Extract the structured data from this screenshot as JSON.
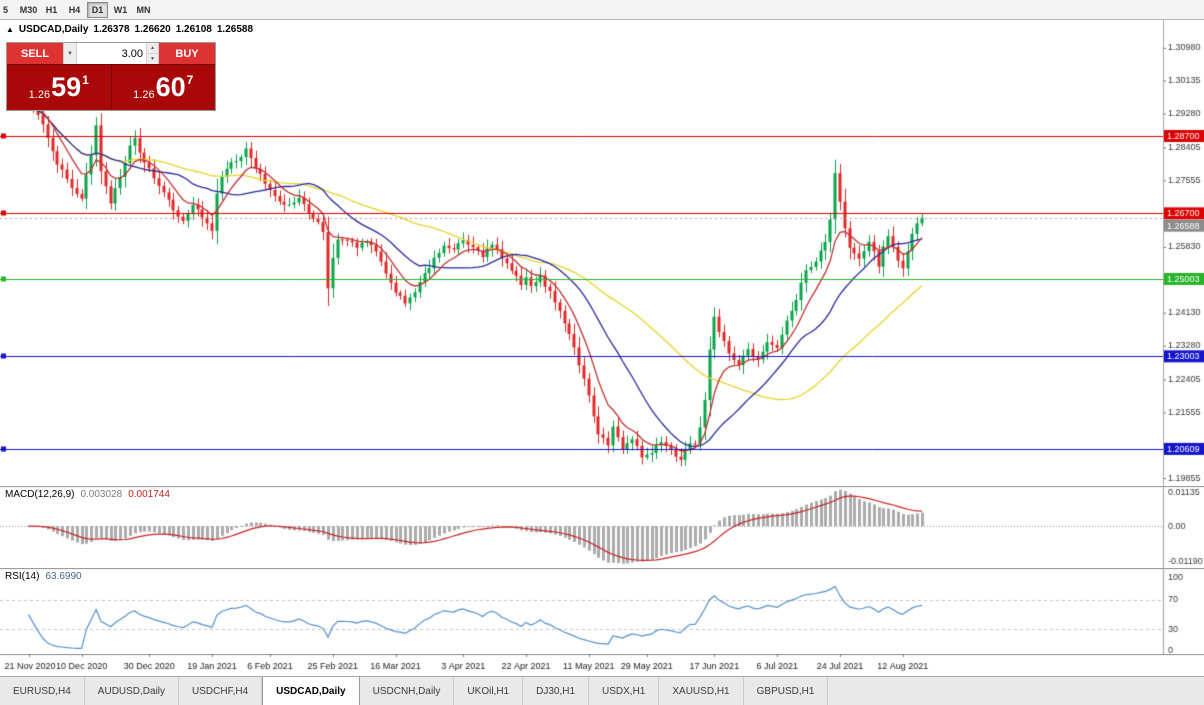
{
  "toolbar": {
    "periods": [
      "5",
      "M30",
      "H1",
      "H4",
      "D1",
      "W1",
      "MN"
    ],
    "active_period": "D1"
  },
  "header": {
    "collapse_icon": "▲",
    "symbol": "USDCAD,Daily",
    "open": "1.26378",
    "high": "1.26620",
    "low": "1.26108",
    "close": "1.26588"
  },
  "trade": {
    "sell_label": "SELL",
    "buy_label": "BUY",
    "volume": "3.00",
    "bid_small": "1.26",
    "bid_big": "59",
    "bid_sup": "1",
    "ask_small": "1.26",
    "ask_big": "60",
    "ask_sup": "7"
  },
  "icons": {
    "dropdown": "▼",
    "spin_up": "▲",
    "spin_down": "▼"
  },
  "indicators": {
    "macd": {
      "name": "MACD(12,26,9)",
      "value": "0.003028",
      "signal_value": "0.001744"
    },
    "rsi": {
      "name": "RSI(14)",
      "value": "63.6990"
    }
  },
  "tabs": {
    "items": [
      "EURUSD,H4",
      "AUDUSD,Daily",
      "USDCHF,H4",
      "USDCAD,Daily",
      "USDCNH,Daily",
      "UKOil,H1",
      "DJ30,H1",
      "USDX,H1",
      "XAUUSD,H1",
      "GBPUSD,H1"
    ],
    "active_index": 3
  },
  "chart_data": {
    "type": "candlestick",
    "symbol": "USDCAD",
    "timeframe": "Daily",
    "ohlc_display": {
      "open": 1.26378,
      "high": 1.2662,
      "low": 1.26108,
      "close": 1.26588
    },
    "candles_count": 186,
    "price_axis": {
      "min": 1.1965,
      "max": 1.317,
      "ticks": [
        "1.30980",
        "1.30135",
        "1.29280",
        "1.28405",
        "1.27555",
        "1.25830",
        "1.24130",
        "1.23280",
        "1.22405",
        "1.21555",
        "1.19855"
      ]
    },
    "level_lines": [
      {
        "price": 1.287,
        "label": "1.28700",
        "color": "#dd0000"
      },
      {
        "price": 1.267,
        "label": "1.26700",
        "color": "#dd0000"
      },
      {
        "price": 1.25003,
        "label": "1.25003",
        "color": "#28b428"
      },
      {
        "price": 1.23003,
        "label": "1.23003",
        "color": "#1414cc"
      },
      {
        "price": 1.20609,
        "label": "1.20609",
        "color": "#1414cc"
      }
    ],
    "current_price": {
      "value": 1.26588,
      "label": "1.26588",
      "color": "#8c8c8c"
    },
    "colors": {
      "up": "#0aa44a",
      "down": "#e02828"
    },
    "moving_averages": [
      {
        "type": "sma",
        "period": 45,
        "color": "#e8d428"
      },
      {
        "type": "sma",
        "period": 20,
        "color": "#2a2a9a"
      },
      {
        "type": "ema",
        "period": 8,
        "color": "#c03232"
      }
    ],
    "price_path_anchors": [
      [
        0,
        1.295
      ],
      [
        2,
        1.292
      ],
      [
        4,
        1.287
      ],
      [
        6,
        1.28
      ],
      [
        8,
        1.276
      ],
      [
        10,
        1.272
      ],
      [
        11,
        1.271
      ],
      [
        13,
        1.282
      ],
      [
        14,
        1.29
      ],
      [
        15,
        1.278
      ],
      [
        17,
        1.27
      ],
      [
        19,
        1.276
      ],
      [
        21,
        1.284
      ],
      [
        22,
        1.286
      ],
      [
        24,
        1.28
      ],
      [
        25,
        1.279
      ],
      [
        26,
        1.276
      ],
      [
        28,
        1.272
      ],
      [
        30,
        1.268
      ],
      [
        32,
        1.265
      ],
      [
        34,
        1.269
      ],
      [
        36,
        1.266
      ],
      [
        38,
        1.263
      ],
      [
        39,
        1.272
      ],
      [
        40,
        1.276
      ],
      [
        42,
        1.28
      ],
      [
        44,
        1.282
      ],
      [
        45,
        1.284
      ],
      [
        46,
        1.281
      ],
      [
        48,
        1.277
      ],
      [
        50,
        1.273
      ],
      [
        52,
        1.27
      ],
      [
        54,
        1.269
      ],
      [
        56,
        1.271
      ],
      [
        58,
        1.267
      ],
      [
        60,
        1.265
      ],
      [
        61,
        1.262
      ],
      [
        62,
        1.248
      ],
      [
        63,
        1.255
      ],
      [
        64,
        1.26
      ],
      [
        66,
        1.26
      ],
      [
        68,
        1.258
      ],
      [
        70,
        1.26
      ],
      [
        72,
        1.257
      ],
      [
        74,
        1.251
      ],
      [
        76,
        1.247
      ],
      [
        78,
        1.244
      ],
      [
        80,
        1.247
      ],
      [
        82,
        1.251
      ],
      [
        84,
        1.255
      ],
      [
        86,
        1.259
      ],
      [
        88,
        1.2575
      ],
      [
        90,
        1.26
      ],
      [
        92,
        1.258
      ],
      [
        94,
        1.256
      ],
      [
        96,
        1.259
      ],
      [
        98,
        1.2555
      ],
      [
        100,
        1.252
      ],
      [
        102,
        1.249
      ],
      [
        103,
        1.25
      ],
      [
        104,
        1.248
      ],
      [
        106,
        1.2505
      ],
      [
        108,
        1.2465
      ],
      [
        110,
        1.242
      ],
      [
        112,
        1.236
      ],
      [
        114,
        1.228
      ],
      [
        116,
        1.22
      ],
      [
        118,
        1.21
      ],
      [
        120,
        1.207
      ],
      [
        121,
        1.212
      ],
      [
        123,
        1.206
      ],
      [
        125,
        1.209
      ],
      [
        127,
        1.204
      ],
      [
        129,
        1.205
      ],
      [
        131,
        1.208
      ],
      [
        133,
        1.206
      ],
      [
        135,
        1.203
      ],
      [
        137,
        1.208
      ],
      [
        138,
        1.207
      ],
      [
        139,
        1.212
      ],
      [
        140,
        1.219
      ],
      [
        141,
        1.232
      ],
      [
        142,
        1.24
      ],
      [
        143,
        1.236
      ],
      [
        145,
        1.231
      ],
      [
        147,
        1.228
      ],
      [
        149,
        1.232
      ],
      [
        151,
        1.229
      ],
      [
        153,
        1.234
      ],
      [
        155,
        1.232
      ],
      [
        157,
        1.239
      ],
      [
        159,
        1.245
      ],
      [
        161,
        1.252
      ],
      [
        163,
        1.255
      ],
      [
        165,
        1.26
      ],
      [
        166,
        1.266
      ],
      [
        167,
        1.277
      ],
      [
        168,
        1.27
      ],
      [
        169,
        1.263
      ],
      [
        170,
        1.258
      ],
      [
        172,
        1.255
      ],
      [
        174,
        1.26
      ],
      [
        175,
        1.257
      ],
      [
        176,
        1.253
      ],
      [
        177,
        1.258
      ],
      [
        178,
        1.261
      ],
      [
        179,
        1.258
      ],
      [
        180,
        1.255
      ],
      [
        181,
        1.253
      ],
      [
        182,
        1.2575
      ],
      [
        183,
        1.262
      ],
      [
        184,
        1.2645
      ],
      [
        185,
        1.26588
      ]
    ],
    "macd": {
      "fast": 12,
      "slow": 26,
      "signal": 9,
      "axis_max": 0.01135,
      "axis_min": -0.0119,
      "axis_labels": [
        "0.01135",
        "0.00",
        "-0.01190"
      ],
      "histogram_color": "#ababab",
      "signal_color": "#cc2222"
    },
    "rsi": {
      "period": 14,
      "line_color": "#5590cc",
      "levels_dashed": [
        70,
        30
      ],
      "axis_labels": [
        {
          "v": 100,
          "t": "100"
        },
        {
          "v": 70,
          "t": "70"
        },
        {
          "v": 30,
          "t": "30"
        },
        {
          "v": 0,
          "t": "0"
        }
      ]
    },
    "time_axis": [
      {
        "label": "21 Nov 2020",
        "index": 0
      },
      {
        "label": "10 Dec 2020",
        "index": 11
      },
      {
        "label": "30 Dec 2020",
        "index": 25
      },
      {
        "label": "19 Jan 2021",
        "index": 38
      },
      {
        "label": "6 Feb 2021",
        "index": 50
      },
      {
        "label": "25 Feb 2021",
        "index": 63
      },
      {
        "label": "16 Mar 2021",
        "index": 76
      },
      {
        "label": "3 Apr 2021",
        "index": 90
      },
      {
        "label": "22 Apr 2021",
        "index": 103
      },
      {
        "label": "11 May 2021",
        "index": 116
      },
      {
        "label": "29 May 2021",
        "index": 128
      },
      {
        "label": "17 Jun 2021",
        "index": 142
      },
      {
        "label": "6 Jul 2021",
        "index": 155
      },
      {
        "label": "24 Jul 2021",
        "index": 168
      },
      {
        "label": "12 Aug 2021",
        "index": 181
      }
    ]
  }
}
